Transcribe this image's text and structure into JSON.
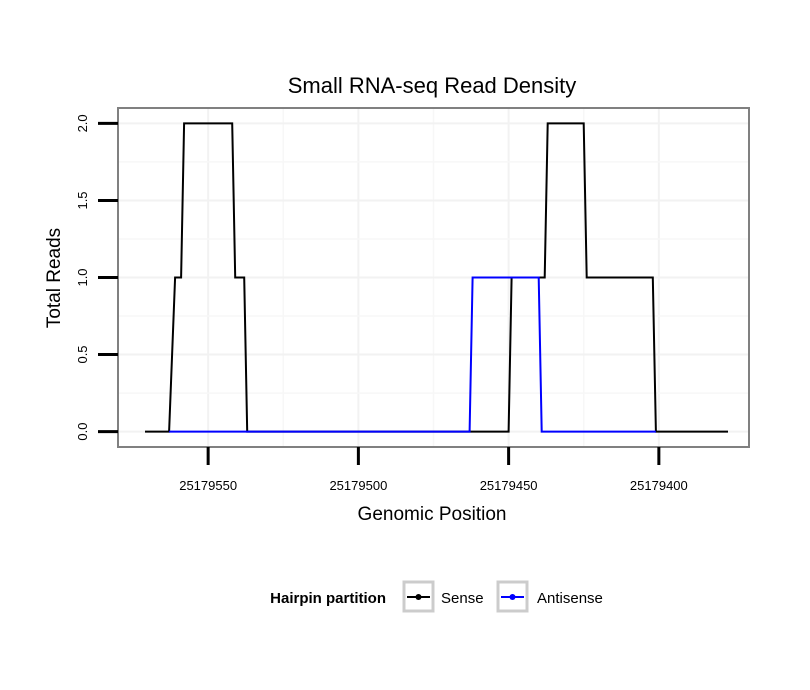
{
  "chart_data": {
    "type": "line",
    "title": "Small RNA-seq Read Density",
    "xlabel": "Genomic Position",
    "ylabel": "Total Reads",
    "x_reversed": true,
    "xlim": [
      25179580,
      25179370
    ],
    "ylim": [
      -0.1,
      2.1
    ],
    "x_ticks": [
      25179550,
      25179500,
      25179450,
      25179400
    ],
    "x_tick_labels": [
      "25179550",
      "25179500",
      "25179450",
      "25179400"
    ],
    "y_ticks": [
      0.0,
      0.5,
      1.0,
      1.5,
      2.0
    ],
    "y_tick_labels": [
      "0.0",
      "0.5",
      "1.0",
      "1.5",
      "2.0"
    ],
    "grid": true,
    "legend": {
      "title": "Hairpin partition",
      "position": "bottom",
      "entries": [
        "Sense",
        "Antisense"
      ]
    },
    "series": [
      {
        "name": "Sense",
        "color": "#000000",
        "x": [
          25179571,
          25179563,
          25179561,
          25179559,
          25179558,
          25179555,
          25179545,
          25179542,
          25179541,
          25179538,
          25179537,
          25179450,
          25179449,
          25179438,
          25179437,
          25179425,
          25179424,
          25179410,
          25179409,
          25179402,
          25179401,
          25179377
        ],
        "y": [
          0,
          0,
          1,
          1,
          2,
          2,
          2,
          2,
          1,
          1,
          0,
          0,
          1,
          1,
          2,
          2,
          1,
          1,
          1,
          1,
          0,
          0
        ]
      },
      {
        "name": "Antisense",
        "color": "#0000ff",
        "x": [
          25179563,
          25179538,
          25179463,
          25179462,
          25179440,
          25179439,
          25179401
        ],
        "y": [
          0,
          0,
          0,
          1,
          1,
          0,
          0
        ]
      }
    ]
  }
}
